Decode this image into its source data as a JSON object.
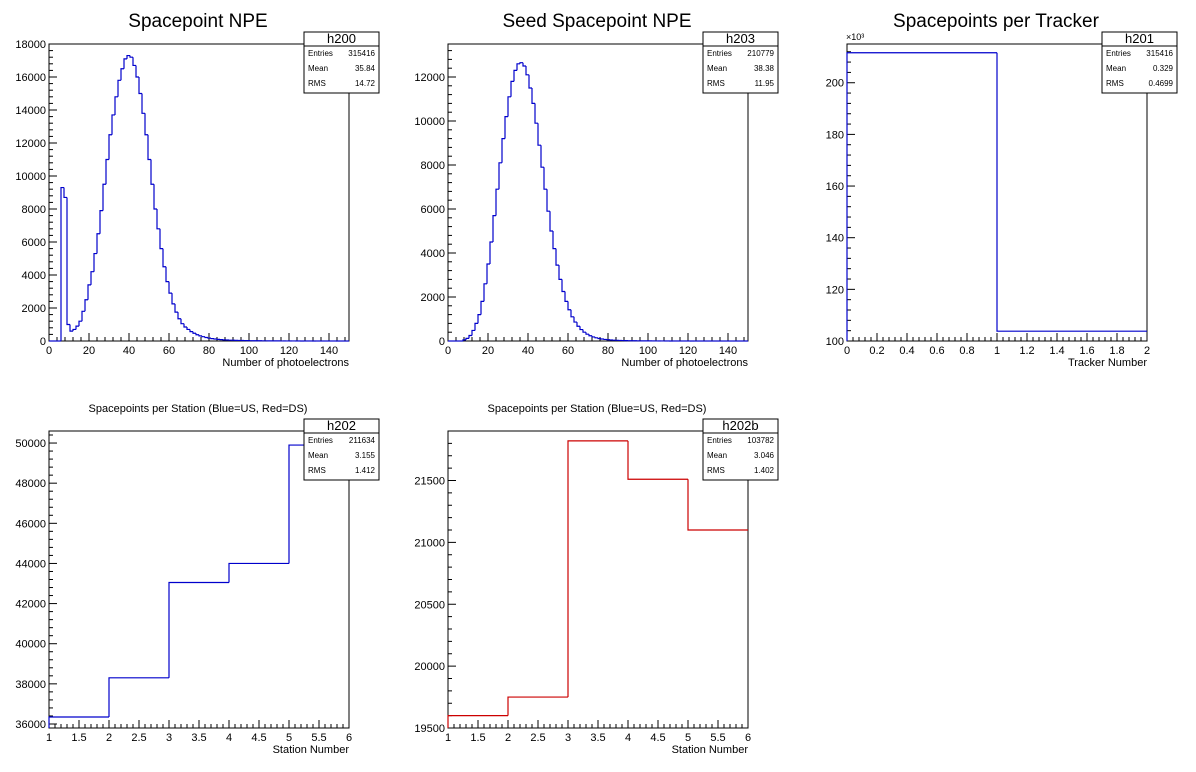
{
  "chart_data": [
    {
      "type": "histogram",
      "title": "Spacepoint NPE",
      "xlabel": "Number of photoelectrons",
      "ylabel": "",
      "xlim": [
        0,
        150
      ],
      "ylim": [
        0,
        18000
      ],
      "xticks": [
        "0",
        "20",
        "40",
        "60",
        "80",
        "100",
        "120",
        "140"
      ],
      "yticks": [
        "0",
        "2000",
        "4000",
        "6000",
        "8000",
        "10000",
        "12000",
        "14000",
        "16000",
        "18000"
      ],
      "line_color": "#0000cc",
      "bins": {
        "low": 0,
        "width": 1.5
      },
      "values": [
        0,
        0,
        0,
        0,
        9300,
        8700,
        1000,
        600,
        700,
        900,
        1200,
        1800,
        2500,
        3400,
        4200,
        5300,
        6500,
        7900,
        9500,
        11000,
        12500,
        13700,
        14800,
        15800,
        16500,
        17100,
        17300,
        17200,
        16700,
        16000,
        15000,
        13800,
        12500,
        11000,
        9500,
        8000,
        6800,
        5600,
        4500,
        3600,
        2900,
        2250,
        1750,
        1350,
        1050,
        850,
        700,
        570,
        470,
        380,
        310,
        260,
        210,
        175,
        145,
        120,
        100,
        85,
        70,
        60,
        50,
        45,
        40,
        35,
        30,
        26,
        23,
        20,
        17,
        15,
        13,
        12,
        10,
        9,
        8,
        7,
        6,
        5,
        5,
        4,
        4,
        3,
        3,
        3,
        2,
        2,
        2,
        2,
        1,
        1,
        1,
        1,
        1,
        1,
        1,
        1,
        0,
        0,
        0,
        0
      ],
      "stats": {
        "name": "h200",
        "rows": [
          {
            "label": "Entries",
            "value": "315416"
          },
          {
            "label": "Mean",
            "value": "35.84"
          },
          {
            "label": "RMS",
            "value": "14.72"
          }
        ]
      }
    },
    {
      "type": "histogram",
      "title": "Seed Spacepoint NPE",
      "xlabel": "Number of photoelectrons",
      "ylabel": "",
      "xlim": [
        0,
        150
      ],
      "ylim": [
        0,
        13500
      ],
      "xticks": [
        "0",
        "20",
        "40",
        "60",
        "80",
        "100",
        "120",
        "140"
      ],
      "yticks": [
        "0",
        "2000",
        "4000",
        "6000",
        "8000",
        "10000",
        "12000"
      ],
      "line_color": "#0000cc",
      "bins": {
        "low": 0,
        "width": 1.5
      },
      "values": [
        0,
        0,
        0,
        0,
        0,
        50,
        120,
        250,
        480,
        800,
        1200,
        1800,
        2600,
        3500,
        4500,
        5700,
        6900,
        8100,
        9200,
        10200,
        11100,
        11800,
        12300,
        12600,
        12650,
        12500,
        12100,
        11500,
        10800,
        9900,
        8900,
        7900,
        6900,
        5900,
        5000,
        4200,
        3450,
        2800,
        2250,
        1800,
        1420,
        1100,
        860,
        670,
        520,
        400,
        310,
        240,
        185,
        145,
        115,
        90,
        72,
        58,
        47,
        38,
        31,
        25,
        21,
        17,
        14,
        12,
        10,
        8,
        7,
        6,
        5,
        4,
        4,
        3,
        3,
        2,
        2,
        2,
        1,
        1,
        1,
        1,
        1,
        1,
        1,
        0,
        0,
        0,
        0,
        0,
        0,
        0,
        0,
        0,
        0,
        0,
        0,
        0,
        0,
        0,
        0,
        0,
        0,
        0
      ],
      "stats": {
        "name": "h203",
        "rows": [
          {
            "label": "Entries",
            "value": "210779"
          },
          {
            "label": "Mean",
            "value": "38.38"
          },
          {
            "label": "RMS",
            "value": "11.95"
          }
        ]
      }
    },
    {
      "type": "histogram",
      "title": "Spacepoints per Tracker",
      "xlabel": "Tracker Number",
      "ylabel": "",
      "exponent_label": "×10³",
      "xlim": [
        0,
        2
      ],
      "ylim": [
        100,
        215
      ],
      "xticks": [
        "0",
        "0.2",
        "0.4",
        "0.6",
        "0.8",
        "1",
        "1.2",
        "1.4",
        "1.6",
        "1.8",
        "2"
      ],
      "yticks": [
        "100",
        "120",
        "140",
        "160",
        "180",
        "200"
      ],
      "line_color": "#0000cc",
      "bins": {
        "low": 0,
        "width": 1
      },
      "values": [
        211.6,
        103.8
      ],
      "stats": {
        "name": "h201",
        "rows": [
          {
            "label": "Entries",
            "value": "315416"
          },
          {
            "label": "Mean",
            "value": "0.329"
          },
          {
            "label": "RMS",
            "value": "0.4699"
          }
        ]
      }
    },
    {
      "type": "histogram",
      "title": "Spacepoints per Station (Blue=US, Red=DS)",
      "xlabel": "Station Number",
      "ylabel": "",
      "xlim": [
        1,
        6
      ],
      "ylim": [
        35800,
        50600
      ],
      "xticks": [
        "1",
        "1.5",
        "2",
        "2.5",
        "3",
        "3.5",
        "4",
        "4.5",
        "5",
        "5.5",
        "6"
      ],
      "yticks": [
        "36000",
        "38000",
        "40000",
        "42000",
        "44000",
        "46000",
        "48000",
        "50000"
      ],
      "line_color": "#0000cc",
      "bins": {
        "low": 1,
        "width": 1
      },
      "values": [
        36350,
        38300,
        43050,
        44000,
        49900
      ],
      "stats": {
        "name": "h202",
        "rows": [
          {
            "label": "Entries",
            "value": "211634"
          },
          {
            "label": "Mean",
            "value": "3.155"
          },
          {
            "label": "RMS",
            "value": "1.412"
          }
        ]
      }
    },
    {
      "type": "histogram",
      "title": "Spacepoints per Station (Blue=US, Red=DS)",
      "xlabel": "Station Number",
      "ylabel": "",
      "xlim": [
        1,
        6
      ],
      "ylim": [
        19500,
        21900
      ],
      "xticks": [
        "1",
        "1.5",
        "2",
        "2.5",
        "3",
        "3.5",
        "4",
        "4.5",
        "5",
        "5.5",
        "6"
      ],
      "yticks": [
        "19500",
        "20000",
        "20500",
        "21000",
        "21500"
      ],
      "line_color": "#cc0000",
      "bins": {
        "low": 1,
        "width": 1
      },
      "values": [
        19600,
        19750,
        21820,
        21510,
        21100
      ],
      "stats": {
        "name": "h202b",
        "rows": [
          {
            "label": "Entries",
            "value": "103782"
          },
          {
            "label": "Mean",
            "value": "3.046"
          },
          {
            "label": "RMS",
            "value": "1.402"
          }
        ]
      }
    }
  ]
}
